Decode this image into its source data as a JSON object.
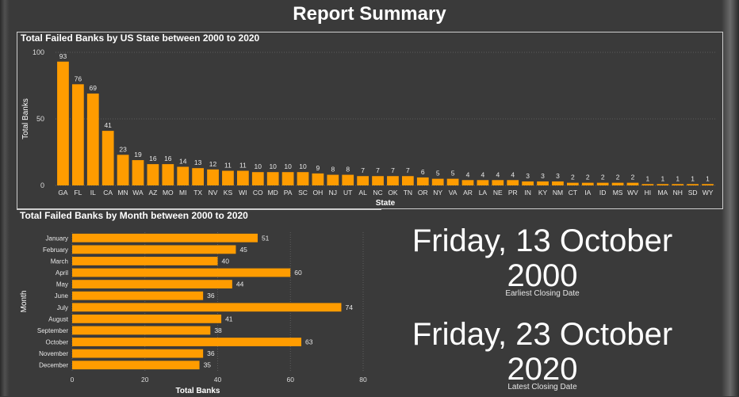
{
  "report_title": "Report Summary",
  "chart_data": [
    {
      "type": "bar",
      "title": "Total Failed Banks by US State between 2000 to 2020",
      "xlabel": "State",
      "ylabel": "Total Banks",
      "ylim": [
        0,
        100
      ],
      "yticks": [
        0,
        50,
        100
      ],
      "grid": true,
      "bar_color": "#ff9c00",
      "categories": [
        "GA",
        "FL",
        "IL",
        "CA",
        "MN",
        "WA",
        "AZ",
        "MO",
        "MI",
        "TX",
        "NV",
        "KS",
        "WI",
        "CO",
        "MD",
        "PA",
        "SC",
        "OH",
        "NJ",
        "UT",
        "AL",
        "NC",
        "OK",
        "TN",
        "OR",
        "NY",
        "VA",
        "AR",
        "LA",
        "NE",
        "PR",
        "IN",
        "KY",
        "NM",
        "CT",
        "IA",
        "ID",
        "MS",
        "WV",
        "HI",
        "MA",
        "NH",
        "SD",
        "WY"
      ],
      "values": [
        93,
        76,
        69,
        41,
        23,
        19,
        16,
        16,
        14,
        13,
        12,
        11,
        11,
        10,
        10,
        10,
        10,
        9,
        8,
        8,
        7,
        7,
        7,
        7,
        6,
        5,
        5,
        4,
        4,
        4,
        4,
        3,
        3,
        3,
        2,
        2,
        2,
        2,
        2,
        1,
        1,
        1,
        1,
        1
      ]
    },
    {
      "type": "bar",
      "orientation": "horizontal",
      "title": "Total Failed Banks by Month between 2000 to 2020",
      "xlabel": "Total Banks",
      "ylabel": "Month",
      "xlim": [
        0,
        80
      ],
      "xticks": [
        0,
        20,
        40,
        60,
        80
      ],
      "grid": true,
      "bar_color": "#ff9c00",
      "categories": [
        "January",
        "February",
        "March",
        "April",
        "May",
        "June",
        "July",
        "August",
        "September",
        "October",
        "November",
        "December"
      ],
      "values": [
        51,
        45,
        40,
        60,
        44,
        36,
        74,
        41,
        38,
        63,
        36,
        35
      ]
    }
  ],
  "cards": {
    "earliest": {
      "value": "Friday, 13 October 2000",
      "label": "Earliest Closing Date"
    },
    "latest": {
      "value": "Friday, 23 October 2020",
      "label": "Latest Closing Date"
    }
  }
}
